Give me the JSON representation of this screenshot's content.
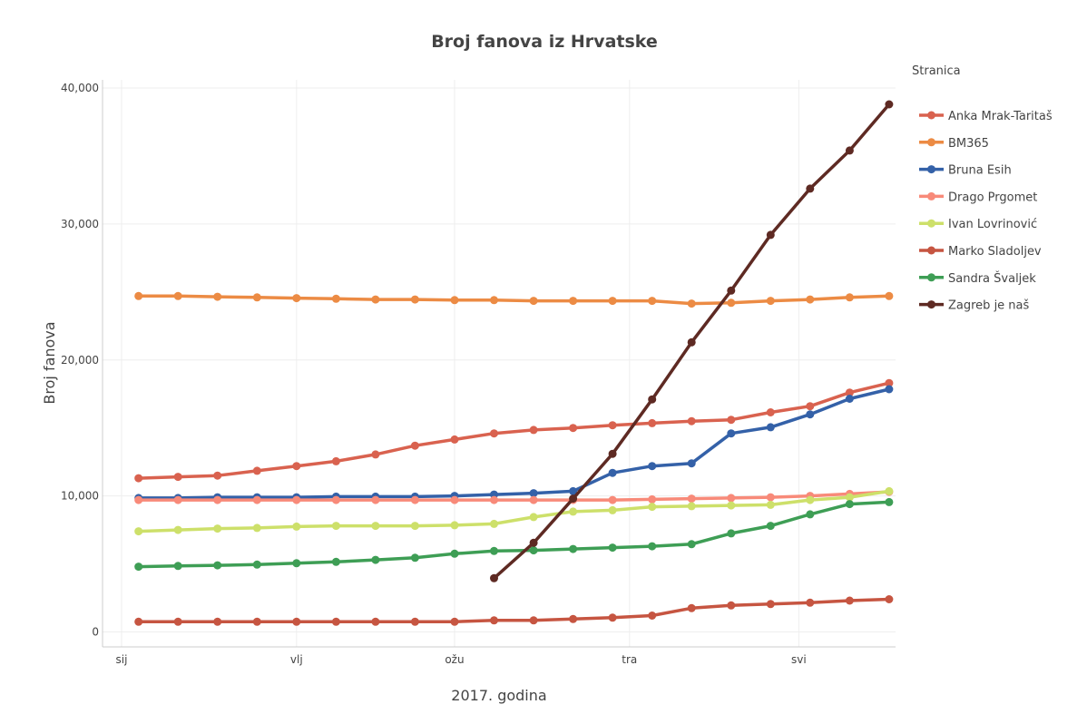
{
  "chart_data": {
    "type": "line",
    "title": "Broj fanova iz Hrvatske",
    "xlabel": "2017. godina",
    "ylabel": "Broj fanova",
    "x_ticks": [
      "sij",
      "vlj",
      "ožu",
      "tra",
      "svi"
    ],
    "y_ticks": [
      "0",
      "10,000",
      "20,000",
      "30,000",
      "40,000"
    ],
    "ylim": [
      -1100,
      40600
    ],
    "legend_title": "Stranica",
    "legend_position": "right",
    "grid": true,
    "x": [
      "2017-01-04",
      "2017-01-11",
      "2017-01-18",
      "2017-01-25",
      "2017-02-01",
      "2017-02-08",
      "2017-02-15",
      "2017-02-22",
      "2017-03-01",
      "2017-03-08",
      "2017-03-15",
      "2017-03-22",
      "2017-03-29",
      "2017-04-05",
      "2017-04-12",
      "2017-04-19",
      "2017-04-26",
      "2017-05-03",
      "2017-05-10",
      "2017-05-17"
    ],
    "series": [
      {
        "name": "Anka Mrak-Taritaš",
        "color": "#d9624f",
        "values": [
          11300,
          11400,
          11500,
          11850,
          12200,
          12550,
          13050,
          13700,
          14150,
          14600,
          14850,
          15000,
          15200,
          15350,
          15500,
          15600,
          16150,
          16600,
          17600,
          18300
        ]
      },
      {
        "name": "BM365",
        "color": "#ec8b44",
        "values": [
          24700,
          24700,
          24650,
          24600,
          24550,
          24500,
          24450,
          24450,
          24400,
          24400,
          24350,
          24350,
          24350,
          24350,
          24150,
          24200,
          24350,
          24450,
          24600,
          24700
        ]
      },
      {
        "name": "Bruna Esih",
        "color": "#3461a8",
        "values": [
          9850,
          9850,
          9900,
          9900,
          9900,
          9950,
          9950,
          9950,
          10000,
          10100,
          10200,
          10350,
          11700,
          12200,
          12400,
          14600,
          15050,
          16000,
          17150,
          17850
        ]
      },
      {
        "name": "Drago Prgomet",
        "color": "#f88a79",
        "values": [
          9700,
          9700,
          9700,
          9700,
          9700,
          9700,
          9700,
          9700,
          9700,
          9700,
          9700,
          9700,
          9700,
          9750,
          9800,
          9850,
          9900,
          10000,
          10150,
          10300
        ]
      },
      {
        "name": "Ivan Lovrinović",
        "color": "#cde06a",
        "values": [
          7400,
          7500,
          7600,
          7650,
          7750,
          7800,
          7800,
          7800,
          7850,
          7950,
          8450,
          8850,
          8950,
          9200,
          9250,
          9300,
          9350,
          9700,
          9900,
          10350
        ]
      },
      {
        "name": "Marko Sladoljev",
        "color": "#c65541",
        "values": [
          750,
          750,
          750,
          750,
          750,
          750,
          750,
          750,
          750,
          850,
          850,
          950,
          1050,
          1200,
          1750,
          1950,
          2050,
          2150,
          2300,
          2400
        ]
      },
      {
        "name": "Sandra Švaljek",
        "color": "#3e9e55",
        "values": [
          4800,
          4850,
          4900,
          4950,
          5050,
          5150,
          5300,
          5450,
          5750,
          5950,
          6000,
          6100,
          6200,
          6300,
          6450,
          7250,
          7800,
          8650,
          9400,
          9550
        ]
      },
      {
        "name": "Zagreb je naš",
        "color": "#5e2a23",
        "values": [
          null,
          null,
          null,
          null,
          null,
          null,
          null,
          null,
          null,
          3950,
          6550,
          9800,
          13100,
          17100,
          21300,
          25100,
          29200,
          32600,
          35400,
          38800
        ]
      }
    ]
  }
}
